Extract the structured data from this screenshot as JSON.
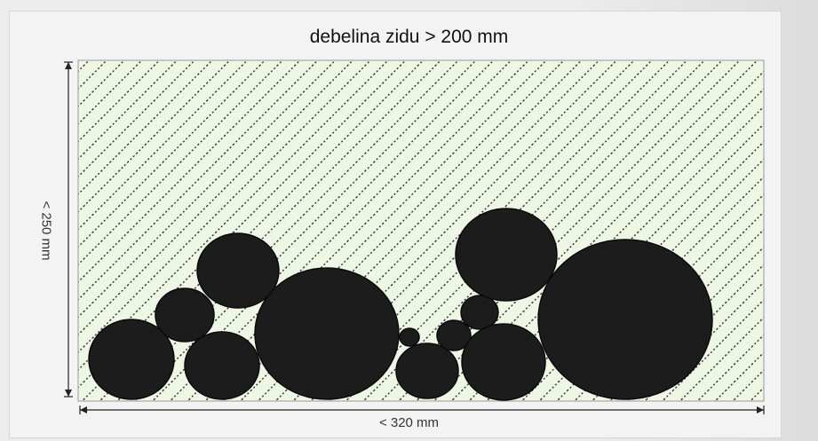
{
  "title": "debelina zidu > 200 mm",
  "dimensions": {
    "height_label": "< 250 mm",
    "width_label": "< 320 mm"
  },
  "colors": {
    "fill": "#eef6e4",
    "hatch": "#1a1a1a",
    "stone": "#1c1c1c"
  },
  "icons": [
    "dimension-arrow-icon"
  ]
}
